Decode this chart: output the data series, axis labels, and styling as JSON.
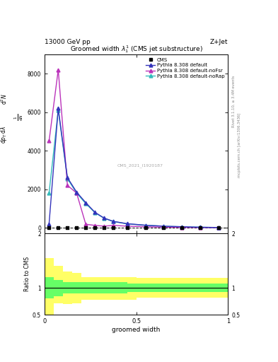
{
  "title": "Groomed width $\\lambda_1^1$ (CMS jet substructure)",
  "top_left_label": "13000 GeV pp",
  "top_right_label": "Z+Jet",
  "right_label1": "Rivet 3.1.10, ≥ 3.4M events",
  "right_label2": "mcplots.cern.ch [arXiv:1306.3436]",
  "watermark": "CMS_2021_I1920187",
  "xlabel": "groomed width",
  "ratio_ylabel": "Ratio to CMS",
  "xlim": [
    0,
    1
  ],
  "ylim_main": [
    -300,
    9000
  ],
  "ylim_ratio": [
    0.5,
    2.0
  ],
  "pythia_default_x": [
    0.025,
    0.075,
    0.125,
    0.175,
    0.225,
    0.275,
    0.325,
    0.375,
    0.45,
    0.55,
    0.65,
    0.75,
    0.85,
    0.95
  ],
  "pythia_default_y": [
    200,
    6200,
    2600,
    1850,
    1300,
    800,
    500,
    330,
    210,
    130,
    80,
    50,
    25,
    10
  ],
  "pythia_noFsr_x": [
    0.025,
    0.075,
    0.125,
    0.175,
    0.225,
    0.275,
    0.325,
    0.375,
    0.45,
    0.55,
    0.65,
    0.75,
    0.85,
    0.95
  ],
  "pythia_noFsr_y": [
    4500,
    8200,
    2200,
    1800,
    180,
    120,
    80,
    120,
    80,
    50,
    30,
    20,
    10,
    5
  ],
  "pythia_noRap_x": [
    0.025,
    0.075,
    0.125,
    0.175,
    0.225,
    0.275,
    0.325,
    0.375,
    0.45,
    0.55,
    0.65,
    0.75,
    0.85,
    0.95
  ],
  "pythia_noRap_y": [
    1800,
    6100,
    2550,
    1800,
    1250,
    780,
    490,
    320,
    200,
    125,
    75,
    48,
    23,
    8
  ],
  "cms_x": [
    0.025,
    0.075,
    0.125,
    0.175,
    0.225,
    0.275,
    0.325,
    0.375,
    0.45,
    0.55,
    0.65,
    0.75,
    0.85,
    0.95
  ],
  "cms_y": [
    0,
    0,
    0,
    0,
    0,
    0,
    0,
    0,
    0,
    0,
    0,
    0,
    0,
    0
  ],
  "color_default": "#3333bb",
  "color_noFsr": "#bb33bb",
  "color_noRap": "#33bbbb",
  "ratio_bin_edges": [
    0.0,
    0.05,
    0.1,
    0.15,
    0.2,
    0.25,
    0.3,
    0.35,
    0.4,
    0.45,
    0.5,
    0.6,
    0.7,
    0.8,
    0.9,
    1.0
  ],
  "ratio_green_upper": [
    1.2,
    1.15,
    1.1,
    1.1,
    1.1,
    1.1,
    1.1,
    1.1,
    1.1,
    1.08,
    1.08,
    1.08,
    1.08,
    1.08,
    1.08
  ],
  "ratio_green_lower": [
    0.8,
    0.85,
    0.9,
    0.9,
    0.9,
    0.9,
    0.9,
    0.9,
    0.9,
    0.92,
    0.92,
    0.92,
    0.92,
    0.92,
    0.92
  ],
  "ratio_yellow_upper": [
    1.55,
    1.4,
    1.3,
    1.28,
    1.2,
    1.2,
    1.2,
    1.2,
    1.2,
    1.2,
    1.18,
    1.18,
    1.18,
    1.18,
    1.18
  ],
  "ratio_yellow_lower": [
    0.45,
    0.72,
    0.7,
    0.72,
    0.78,
    0.78,
    0.78,
    0.78,
    0.78,
    0.78,
    0.82,
    0.82,
    0.82,
    0.82,
    0.82
  ],
  "yticks_main": [
    0,
    2000,
    4000,
    6000,
    8000
  ],
  "ytick_labels_main": [
    "0",
    "2000",
    "4000",
    "6000",
    "8000"
  ],
  "xticks": [
    0.0,
    0.5,
    1.0
  ],
  "xtick_labels": [
    "0",
    "0.5",
    "1"
  ]
}
